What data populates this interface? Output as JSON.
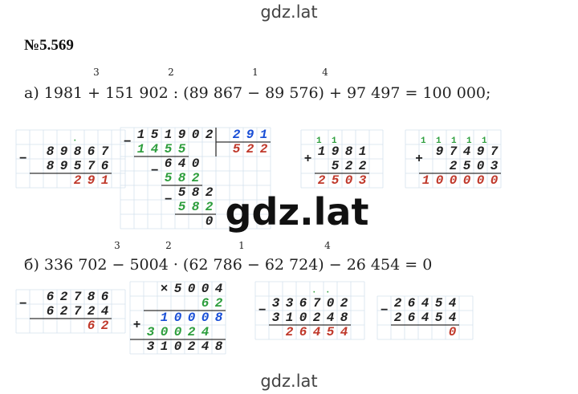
{
  "header": "gdz.lat",
  "title": "№5.569",
  "watermark": "gdz.lat",
  "footer": "gdz.lat",
  "part_a": {
    "order": [
      "3",
      "2",
      "1",
      "4"
    ],
    "expression": "а) 1981 + 151 902 : (89 867 − 89 576) + 97 497 = 100 000;",
    "calcs": [
      {
        "parts": [
          {
            "text": "·",
            "color": "#2e9e3e"
          },
          {
            "text": "−",
            "color": "#222"
          },
          {
            "text": "89867",
            "color": "#222"
          },
          {
            "text": "89576",
            "color": "#222"
          },
          {
            "text": "291",
            "color": "#c0392b"
          }
        ]
      },
      {
        "parts": [
          {
            "text": "−",
            "color": "#222"
          },
          {
            "text": "151902",
            "color": "#222"
          },
          {
            "text": "291",
            "color": "#1a4fd6"
          },
          {
            "text": "1455",
            "color": "#2e9e3e"
          },
          {
            "text": "522",
            "color": "#c0392b"
          },
          {
            "text": "−",
            "color": "#222"
          },
          {
            "text": "640",
            "color": "#222"
          },
          {
            "text": "582",
            "color": "#2e9e3e"
          },
          {
            "text": "−",
            "color": "#222"
          },
          {
            "text": "582",
            "color": "#222"
          },
          {
            "text": "582",
            "color": "#2e9e3e"
          },
          {
            "text": "0",
            "color": "#222"
          }
        ]
      },
      {
        "parts": [
          {
            "text": "11",
            "color": "#2e9e3e"
          },
          {
            "text": "+",
            "color": "#222"
          },
          {
            "text": "1981",
            "color": "#222"
          },
          {
            "text": "522",
            "color": "#222"
          },
          {
            "text": "2503",
            "color": "#c0392b"
          }
        ]
      },
      {
        "parts": [
          {
            "text": "11111",
            "color": "#2e9e3e"
          },
          {
            "text": "+",
            "color": "#222"
          },
          {
            "text": "97497",
            "color": "#222"
          },
          {
            "text": "2503",
            "color": "#222"
          },
          {
            "text": "100000",
            "color": "#c0392b"
          }
        ]
      }
    ]
  },
  "part_b": {
    "order": [
      "3",
      "2",
      "1",
      "4"
    ],
    "expression": "б) 336 702 − 5004 · (62 786 − 62 724) − 26 454 = 0",
    "calcs": [
      {
        "parts": [
          {
            "text": "−",
            "color": "#222"
          },
          {
            "text": "62786",
            "color": "#222"
          },
          {
            "text": "62724",
            "color": "#222"
          },
          {
            "text": "62",
            "color": "#c0392b"
          }
        ]
      },
      {
        "parts": [
          {
            "text": "×",
            "color": "#222"
          },
          {
            "text": "5004",
            "color": "#222"
          },
          {
            "text": "62",
            "color": "#2e9e3e"
          },
          {
            "text": "10008",
            "color": "#1a4fd6"
          },
          {
            "text": "+",
            "color": "#222"
          },
          {
            "text": "30024",
            "color": "#2e9e3e"
          },
          {
            "text": "310248",
            "color": "#222"
          }
        ]
      },
      {
        "parts": [
          {
            "text": "·",
            "color": "#2e9e3e"
          },
          {
            "text": "·",
            "color": "#2e9e3e"
          },
          {
            "text": "−",
            "color": "#222"
          },
          {
            "text": "336702",
            "color": "#222"
          },
          {
            "text": "310248",
            "color": "#222"
          },
          {
            "text": "26454",
            "color": "#c0392b"
          }
        ]
      },
      {
        "parts": [
          {
            "text": "−",
            "color": "#222"
          },
          {
            "text": "26454",
            "color": "#222"
          },
          {
            "text": "26454",
            "color": "#222"
          },
          {
            "text": "0",
            "color": "#c0392b"
          }
        ]
      }
    ]
  }
}
